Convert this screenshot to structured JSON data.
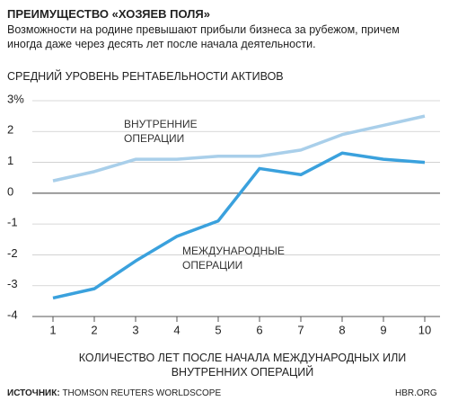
{
  "chart_data": {
    "type": "line",
    "title": "ПРЕИМУЩЕСТВО «ХОЗЯЕВ ПОЛЯ»",
    "subtitle": "Возможности на родине превышают прибыли бизнеса за рубежом, причем иногда даже через десять лет после начала деятельности.",
    "y_label": "СРЕДНИЙ УРОВЕНЬ РЕНТАБЕЛЬНОСТИ АКТИВОВ",
    "x_label": "КОЛИЧЕСТВО ЛЕТ ПОСЛЕ НАЧАЛА МЕЖДУНАРОДНЫХ ИЛИ ВНУТРЕННИХ ОПЕРАЦИЙ",
    "source_label": "ИСТОЧНИК:",
    "source": "THOMSON REUTERS WORLDSCOPE",
    "credit": "HBR.ORG",
    "x": [
      1,
      2,
      3,
      4,
      5,
      6,
      7,
      8,
      9,
      10
    ],
    "series": [
      {
        "name": "ВНУТРЕННИЕ ОПЕРАЦИИ",
        "color": "#a9cfea",
        "values": [
          0.4,
          0.7,
          1.1,
          1.1,
          1.2,
          1.2,
          1.4,
          1.9,
          2.2,
          2.5
        ]
      },
      {
        "name": "МЕЖДУНАРОДНЫЕ ОПЕРАЦИИ",
        "color": "#3aa1dd",
        "values": [
          -3.4,
          -3.1,
          -2.2,
          -1.4,
          -0.9,
          0.8,
          0.6,
          1.3,
          1.1,
          1.0
        ]
      }
    ],
    "xlim": [
      1,
      10
    ],
    "xticks": [
      1,
      2,
      3,
      4,
      5,
      6,
      7,
      8,
      9,
      10
    ],
    "ylim": [
      -4,
      3
    ],
    "yticks": [
      {
        "value": 3,
        "label": "3%"
      },
      2,
      1,
      0,
      -1,
      -2,
      -3,
      -4
    ],
    "grid": true
  }
}
